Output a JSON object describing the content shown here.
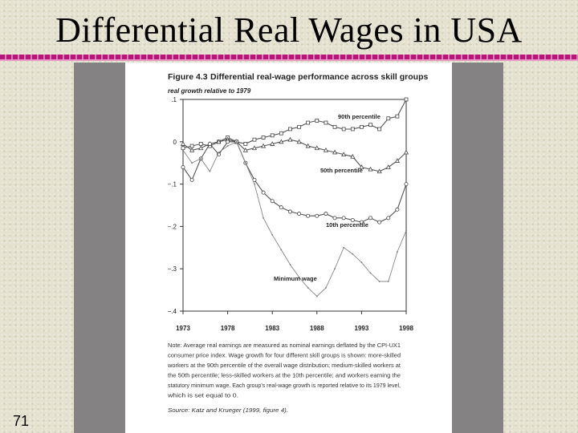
{
  "slide": {
    "title": "Differential Real Wages in USA",
    "number": "71"
  },
  "figure": {
    "caption_label": "Figure 4.3",
    "caption_title": "Differential real-wage performance across skill groups"
  },
  "chart_data": {
    "type": "line",
    "ylabel": "real growth relative to 1979",
    "x_ticks": [
      "1973",
      "1978",
      "1983",
      "1988",
      "1993",
      "1998"
    ],
    "y_ticks": [
      {
        "value": 0.1,
        "label": ".1"
      },
      {
        "value": 0,
        "label": "0"
      },
      {
        "value": -0.1,
        "label": "−.1"
      },
      {
        "value": -0.2,
        "label": "−.2"
      },
      {
        "value": -0.3,
        "label": "−.3"
      },
      {
        "value": -0.4,
        "label": "−.4"
      }
    ],
    "xlim": [
      1973,
      1998
    ],
    "ylim": [
      -0.4,
      0.1
    ],
    "series": [
      {
        "name": "90th percentile",
        "marker": "square",
        "x": [
          1973,
          1974,
          1975,
          1976,
          1977,
          1978,
          1979,
          1980,
          1981,
          1982,
          1983,
          1984,
          1985,
          1986,
          1987,
          1988,
          1989,
          1990,
          1991,
          1992,
          1993,
          1994,
          1995,
          1996,
          1997,
          1998
        ],
        "y": [
          -0.015,
          -0.01,
          -0.005,
          -0.01,
          0,
          0.01,
          0,
          -0.005,
          0.005,
          0.01,
          0.015,
          0.02,
          0.03,
          0.035,
          0.045,
          0.05,
          0.045,
          0.035,
          0.03,
          0.03,
          0.035,
          0.04,
          0.03,
          0.055,
          0.06,
          0.1
        ]
      },
      {
        "name": "50th percentile",
        "marker": "triangle",
        "x": [
          1973,
          1974,
          1975,
          1976,
          1977,
          1978,
          1979,
          1980,
          1981,
          1982,
          1983,
          1984,
          1985,
          1986,
          1987,
          1988,
          1989,
          1990,
          1991,
          1992,
          1993,
          1994,
          1995,
          1996,
          1997,
          1998
        ],
        "y": [
          -0.005,
          -0.02,
          -0.015,
          -0.005,
          0,
          0.005,
          0,
          -0.02,
          -0.015,
          -0.01,
          -0.005,
          0,
          0.005,
          0,
          -0.01,
          -0.015,
          -0.02,
          -0.025,
          -0.03,
          -0.035,
          -0.06,
          -0.065,
          -0.07,
          -0.06,
          -0.045,
          -0.025
        ]
      },
      {
        "name": "10th percentile",
        "marker": "circle",
        "x": [
          1973,
          1974,
          1975,
          1976,
          1977,
          1978,
          1979,
          1980,
          1981,
          1982,
          1983,
          1984,
          1985,
          1986,
          1987,
          1988,
          1989,
          1990,
          1991,
          1992,
          1993,
          1994,
          1995,
          1996,
          1997,
          1998
        ],
        "y": [
          -0.06,
          -0.09,
          -0.04,
          -0.005,
          -0.03,
          0,
          0,
          -0.05,
          -0.09,
          -0.12,
          -0.14,
          -0.155,
          -0.165,
          -0.17,
          -0.175,
          -0.175,
          -0.17,
          -0.18,
          -0.18,
          -0.185,
          -0.19,
          -0.18,
          -0.19,
          -0.18,
          -0.16,
          -0.1
        ]
      },
      {
        "name": "Minimum wage",
        "marker": "none",
        "x": [
          1973,
          1974,
          1975,
          1976,
          1977,
          1978,
          1979,
          1980,
          1981,
          1982,
          1983,
          1984,
          1985,
          1986,
          1987,
          1988,
          1989,
          1990,
          1991,
          1992,
          1993,
          1994,
          1995,
          1996,
          1997,
          1998
        ],
        "y": [
          -0.02,
          -0.05,
          -0.04,
          -0.07,
          -0.025,
          -0.01,
          0,
          -0.05,
          -0.1,
          -0.18,
          -0.22,
          -0.255,
          -0.29,
          -0.32,
          -0.345,
          -0.365,
          -0.345,
          -0.3,
          -0.25,
          -0.265,
          -0.285,
          -0.31,
          -0.33,
          -0.33,
          -0.26,
          -0.21
        ]
      }
    ]
  },
  "note": {
    "lines": [
      "Note: Average real earnings are measured as nominal earnings deflated by the CPI-UX1",
      "consumer price index. Wage growth for four different skill groups is shown: more-skilled",
      "workers at the 90th percentile of the overall wage distribution; medium-skilled workers at",
      "the 50th percentile; less-skilled workers at the 10th percentile; and workers earning the",
      "statutory minimum wage. Each group's real-wage growth is reported relative to its 1979 level,",
      "which is set equal to 0."
    ],
    "source": "Source: Katz and Krueger (1999, figure 4)."
  }
}
